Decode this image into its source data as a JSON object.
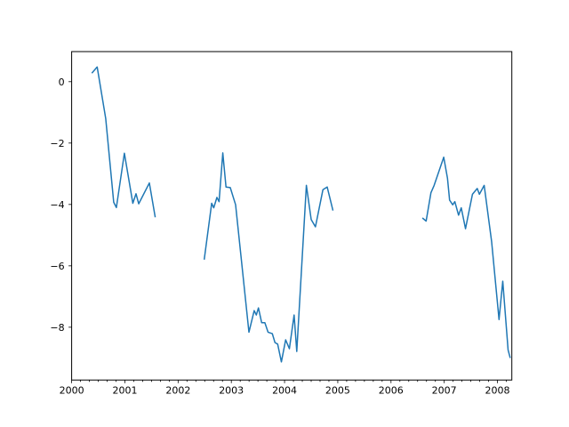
{
  "figure": {
    "background": "#ffffff"
  },
  "chart_data": {
    "type": "line",
    "title": "",
    "xlabel": "",
    "ylabel": "",
    "grid": false,
    "legend": "none",
    "xlim": [
      2000.0,
      2008.27
    ],
    "ylim": [
      -9.72,
      0.98
    ],
    "x_major_ticks": [
      2000,
      2001,
      2002,
      2003,
      2004,
      2005,
      2006,
      2007,
      2008
    ],
    "x_tick_labels": [
      "2000",
      "2001",
      "2002",
      "2003",
      "2004",
      "2005",
      "2006",
      "2007",
      "2008"
    ],
    "x_minor_tick_interval": 0.16667,
    "y_major_ticks": [
      0,
      -2,
      -4,
      -6,
      -8
    ],
    "y_tick_labels": [
      "0",
      "−2",
      "−4",
      "−6",
      "−8"
    ],
    "line_color": "#1f77b4",
    "line_width": 1.5,
    "axis_color": "#000000",
    "series": [
      {
        "name": "segment-1",
        "points": [
          [
            2000.38,
            0.28
          ],
          [
            2000.48,
            0.48
          ],
          [
            2000.64,
            -1.2
          ],
          [
            2000.79,
            -3.93
          ],
          [
            2000.84,
            -4.1
          ],
          [
            2000.99,
            -2.33
          ],
          [
            2001.15,
            -3.96
          ],
          [
            2001.21,
            -3.65
          ],
          [
            2001.26,
            -3.98
          ],
          [
            2001.46,
            -3.3
          ],
          [
            2001.57,
            -4.42
          ]
        ]
      },
      {
        "name": "segment-2",
        "points": [
          [
            2002.49,
            -5.8
          ],
          [
            2002.63,
            -3.96
          ],
          [
            2002.67,
            -4.11
          ],
          [
            2002.73,
            -3.77
          ],
          [
            2002.77,
            -3.91
          ],
          [
            2002.84,
            -2.32
          ],
          [
            2002.9,
            -3.43
          ],
          [
            2002.98,
            -3.45
          ],
          [
            2003.08,
            -4.01
          ],
          [
            2003.33,
            -8.16
          ],
          [
            2003.43,
            -7.46
          ],
          [
            2003.47,
            -7.6
          ],
          [
            2003.51,
            -7.37
          ],
          [
            2003.57,
            -7.85
          ],
          [
            2003.63,
            -7.85
          ],
          [
            2003.69,
            -8.16
          ],
          [
            2003.77,
            -8.21
          ],
          [
            2003.82,
            -8.5
          ],
          [
            2003.87,
            -8.55
          ],
          [
            2003.94,
            -9.13
          ],
          [
            2004.02,
            -8.41
          ],
          [
            2004.09,
            -8.7
          ],
          [
            2004.18,
            -7.6
          ],
          [
            2004.23,
            -8.79
          ],
          [
            2004.41,
            -3.38
          ],
          [
            2004.5,
            -4.49
          ],
          [
            2004.58,
            -4.73
          ],
          [
            2004.72,
            -3.52
          ],
          [
            2004.8,
            -3.43
          ],
          [
            2004.91,
            -4.2
          ]
        ]
      },
      {
        "name": "segment-3",
        "points": [
          [
            2006.59,
            -4.44
          ],
          [
            2006.66,
            -4.54
          ],
          [
            2006.75,
            -3.62
          ],
          [
            2006.81,
            -3.38
          ],
          [
            2006.99,
            -2.46
          ],
          [
            2007.06,
            -3.14
          ],
          [
            2007.1,
            -3.86
          ],
          [
            2007.16,
            -4.01
          ],
          [
            2007.2,
            -3.91
          ],
          [
            2007.27,
            -4.35
          ],
          [
            2007.32,
            -4.11
          ],
          [
            2007.4,
            -4.79
          ],
          [
            2007.53,
            -3.67
          ],
          [
            2007.62,
            -3.48
          ],
          [
            2007.66,
            -3.67
          ],
          [
            2007.75,
            -3.38
          ],
          [
            2007.89,
            -5.22
          ],
          [
            2008.03,
            -7.75
          ],
          [
            2008.1,
            -6.5
          ],
          [
            2008.2,
            -8.74
          ],
          [
            2008.24,
            -9.0
          ]
        ]
      }
    ]
  }
}
